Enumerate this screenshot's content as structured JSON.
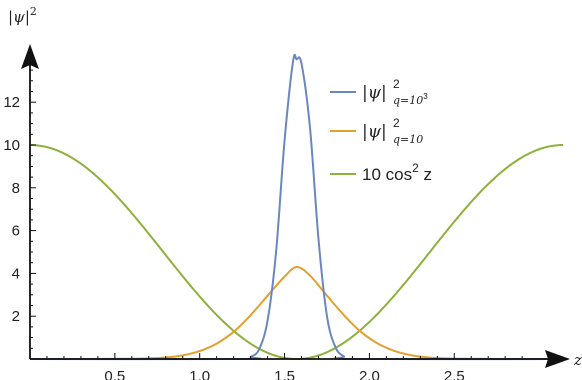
{
  "chart_data": {
    "type": "line",
    "xlabel": "z",
    "ylabel": "|ψ|²",
    "xlim": [
      0,
      3.2
    ],
    "ylim": [
      0,
      14
    ],
    "x_ticks": [
      0.5,
      1.0,
      1.5,
      2.0,
      2.5
    ],
    "x_tick_labels": [
      "0.5",
      "1.0",
      "1.5",
      "2.0",
      "2.5"
    ],
    "y_ticks": [
      2,
      4,
      6,
      8,
      10,
      12
    ],
    "y_tick_labels": [
      "2",
      "4",
      "6",
      "8",
      "10",
      "12"
    ],
    "grid": false,
    "legend_position": "top-right",
    "series": [
      {
        "name": "|ψ|²_{q=10³}",
        "color": "#6b87c0",
        "x": [
          0,
          1.25,
          1.3,
          1.35,
          1.4,
          1.45,
          1.5,
          1.55,
          1.5708,
          1.6,
          1.65,
          1.7,
          1.75,
          1.8,
          1.85,
          1.9,
          3.1416
        ],
        "y": [
          0,
          0.0,
          0.1,
          0.45,
          1.8,
          5.0,
          10.2,
          13.9,
          14.0,
          13.8,
          10.8,
          5.6,
          2.0,
          0.55,
          0.12,
          0.0,
          0
        ]
      },
      {
        "name": "|ψ|²_{q=10}",
        "color": "#e3a02f",
        "x": [
          0,
          0.6,
          0.8,
          0.9,
          1.0,
          1.1,
          1.2,
          1.3,
          1.4,
          1.5,
          1.5708,
          1.65,
          1.75,
          1.85,
          1.95,
          2.05,
          2.15,
          2.25,
          2.35,
          2.55,
          3.1416
        ],
        "y": [
          0,
          0.01,
          0.07,
          0.17,
          0.37,
          0.72,
          1.27,
          2.05,
          2.96,
          3.85,
          4.3,
          3.9,
          2.96,
          2.05,
          1.27,
          0.72,
          0.37,
          0.17,
          0.07,
          0.01,
          0
        ]
      },
      {
        "name": "10 cos² z",
        "color": "#8fb03c",
        "function": "10*cos(z)^2",
        "x_range": [
          0,
          3.1416
        ]
      }
    ],
    "legend": [
      {
        "label_main": "|ψ|",
        "label_sup": "2",
        "label_sub": "q=10",
        "label_sub_sup": "3",
        "color": "#6b87c0"
      },
      {
        "label_main": "|ψ|",
        "label_sup": "2",
        "label_sub": "q=10",
        "label_sub_sup": "",
        "color": "#e3a02f"
      },
      {
        "label_main": "10 cos",
        "label_sup": "2",
        "label_tail": " z",
        "color": "#8fb03c"
      }
    ]
  }
}
